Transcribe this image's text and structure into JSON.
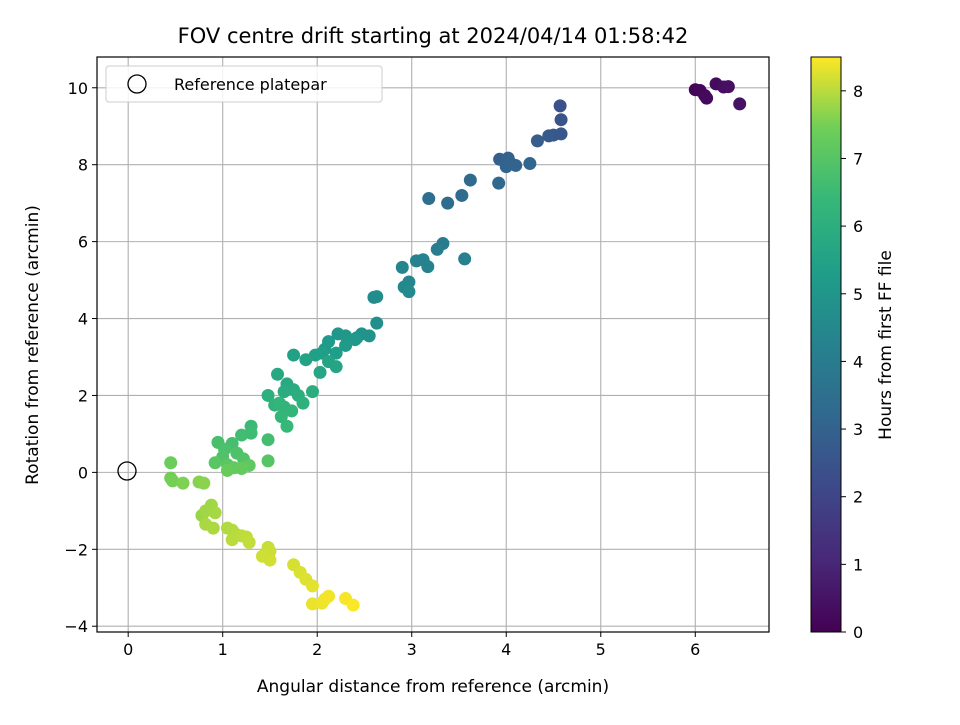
{
  "chart_data": {
    "type": "scatter",
    "title": "FOV centre drift starting at 2024/04/14 01:58:42",
    "xlabel": "Angular distance from reference (arcmin)",
    "ylabel": "Rotation from reference (arcmin)",
    "xlim": [
      -0.33,
      6.78
    ],
    "ylim": [
      -4.15,
      10.8
    ],
    "xticks": [
      "0",
      "1",
      "2",
      "3",
      "4",
      "5",
      "6"
    ],
    "yticks": [
      "−4",
      "−2",
      "0",
      "2",
      "4",
      "6",
      "8",
      "10"
    ],
    "grid": true,
    "legend": {
      "position": "top-left",
      "entries": [
        "Reference platepar"
      ]
    },
    "reference_point": {
      "x": 0,
      "y": 0
    },
    "colorbar": {
      "label": "Hours from first FF file",
      "colormap": "viridis",
      "range": [
        0,
        8.5
      ],
      "ticks": [
        "0",
        "1",
        "2",
        "3",
        "4",
        "5",
        "6",
        "7",
        "8"
      ]
    },
    "points": [
      {
        "x": 6.0,
        "y": 9.95,
        "h": 0.1
      },
      {
        "x": 6.05,
        "y": 9.93,
        "h": 0.15
      },
      {
        "x": 6.1,
        "y": 9.8,
        "h": 0.2
      },
      {
        "x": 6.12,
        "y": 9.73,
        "h": 0.25
      },
      {
        "x": 6.22,
        "y": 10.1,
        "h": 0.3
      },
      {
        "x": 6.3,
        "y": 10.02,
        "h": 0.35
      },
      {
        "x": 6.35,
        "y": 10.03,
        "h": 0.4
      },
      {
        "x": 6.47,
        "y": 9.58,
        "h": 0.45
      },
      {
        "x": 4.57,
        "y": 9.53,
        "h": 2.4
      },
      {
        "x": 4.58,
        "y": 9.17,
        "h": 2.5
      },
      {
        "x": 4.58,
        "y": 8.8,
        "h": 2.6
      },
      {
        "x": 4.5,
        "y": 8.77,
        "h": 2.65
      },
      {
        "x": 4.45,
        "y": 8.75,
        "h": 2.7
      },
      {
        "x": 4.33,
        "y": 8.62,
        "h": 2.8
      },
      {
        "x": 3.93,
        "y": 8.14,
        "h": 2.9
      },
      {
        "x": 4.02,
        "y": 8.17,
        "h": 2.95
      },
      {
        "x": 4.05,
        "y": 8.03,
        "h": 3.0
      },
      {
        "x": 4.1,
        "y": 7.98,
        "h": 3.05
      },
      {
        "x": 4.0,
        "y": 7.95,
        "h": 3.1
      },
      {
        "x": 4.25,
        "y": 8.03,
        "h": 3.15
      },
      {
        "x": 3.92,
        "y": 7.52,
        "h": 3.2
      },
      {
        "x": 3.62,
        "y": 7.6,
        "h": 3.3
      },
      {
        "x": 3.53,
        "y": 7.2,
        "h": 3.35
      },
      {
        "x": 3.38,
        "y": 7.0,
        "h": 3.4
      },
      {
        "x": 3.18,
        "y": 7.12,
        "h": 3.45
      },
      {
        "x": 3.33,
        "y": 5.95,
        "h": 4.0
      },
      {
        "x": 3.27,
        "y": 5.8,
        "h": 4.1
      },
      {
        "x": 3.56,
        "y": 5.55,
        "h": 4.15
      },
      {
        "x": 3.05,
        "y": 5.5,
        "h": 4.2
      },
      {
        "x": 3.12,
        "y": 5.53,
        "h": 4.25
      },
      {
        "x": 3.17,
        "y": 5.35,
        "h": 4.3
      },
      {
        "x": 2.9,
        "y": 5.33,
        "h": 4.35
      },
      {
        "x": 2.97,
        "y": 4.95,
        "h": 4.45
      },
      {
        "x": 2.92,
        "y": 4.82,
        "h": 4.5
      },
      {
        "x": 2.97,
        "y": 4.7,
        "h": 4.55
      },
      {
        "x": 2.6,
        "y": 4.55,
        "h": 4.6
      },
      {
        "x": 2.63,
        "y": 4.57,
        "h": 4.65
      },
      {
        "x": 2.63,
        "y": 3.88,
        "h": 4.75
      },
      {
        "x": 2.47,
        "y": 3.6,
        "h": 4.85
      },
      {
        "x": 2.55,
        "y": 3.55,
        "h": 4.9
      },
      {
        "x": 2.42,
        "y": 3.5,
        "h": 4.95
      },
      {
        "x": 2.22,
        "y": 3.6,
        "h": 5.0
      },
      {
        "x": 2.3,
        "y": 3.55,
        "h": 5.05
      },
      {
        "x": 2.4,
        "y": 3.45,
        "h": 5.1
      },
      {
        "x": 2.12,
        "y": 3.4,
        "h": 5.15
      },
      {
        "x": 2.3,
        "y": 3.3,
        "h": 5.2
      },
      {
        "x": 2.08,
        "y": 3.2,
        "h": 5.25
      },
      {
        "x": 2.2,
        "y": 3.1,
        "h": 5.3
      },
      {
        "x": 2.05,
        "y": 3.1,
        "h": 5.35
      },
      {
        "x": 1.98,
        "y": 3.05,
        "h": 5.4
      },
      {
        "x": 1.75,
        "y": 3.05,
        "h": 5.45
      },
      {
        "x": 1.88,
        "y": 2.93,
        "h": 5.5
      },
      {
        "x": 2.12,
        "y": 2.88,
        "h": 5.55
      },
      {
        "x": 2.2,
        "y": 2.75,
        "h": 5.6
      },
      {
        "x": 2.03,
        "y": 2.6,
        "h": 5.65
      },
      {
        "x": 1.58,
        "y": 2.55,
        "h": 5.75
      },
      {
        "x": 1.68,
        "y": 2.3,
        "h": 5.8
      },
      {
        "x": 1.75,
        "y": 2.15,
        "h": 5.85
      },
      {
        "x": 1.65,
        "y": 2.1,
        "h": 5.9
      },
      {
        "x": 1.95,
        "y": 2.1,
        "h": 5.95
      },
      {
        "x": 1.8,
        "y": 2.0,
        "h": 6.0
      },
      {
        "x": 1.48,
        "y": 2.0,
        "h": 6.05
      },
      {
        "x": 1.85,
        "y": 1.8,
        "h": 6.1
      },
      {
        "x": 1.55,
        "y": 1.75,
        "h": 6.15
      },
      {
        "x": 1.65,
        "y": 1.7,
        "h": 6.2
      },
      {
        "x": 1.6,
        "y": 1.8,
        "h": 6.25
      },
      {
        "x": 1.73,
        "y": 1.6,
        "h": 6.3
      },
      {
        "x": 1.62,
        "y": 1.45,
        "h": 6.35
      },
      {
        "x": 1.68,
        "y": 1.2,
        "h": 6.4
      },
      {
        "x": 1.3,
        "y": 1.2,
        "h": 6.5
      },
      {
        "x": 1.3,
        "y": 1.02,
        "h": 6.55
      },
      {
        "x": 1.2,
        "y": 0.97,
        "h": 6.6
      },
      {
        "x": 1.48,
        "y": 0.85,
        "h": 6.65
      },
      {
        "x": 1.1,
        "y": 0.75,
        "h": 6.7
      },
      {
        "x": 0.95,
        "y": 0.78,
        "h": 6.75
      },
      {
        "x": 1.02,
        "y": 0.6,
        "h": 6.8
      },
      {
        "x": 1.15,
        "y": 0.5,
        "h": 6.85
      },
      {
        "x": 1.0,
        "y": 0.4,
        "h": 6.9
      },
      {
        "x": 1.22,
        "y": 0.35,
        "h": 6.95
      },
      {
        "x": 1.48,
        "y": 0.3,
        "h": 7.0
      },
      {
        "x": 0.92,
        "y": 0.25,
        "h": 7.05
      },
      {
        "x": 1.05,
        "y": 0.2,
        "h": 7.1
      },
      {
        "x": 1.28,
        "y": 0.18,
        "h": 7.15
      },
      {
        "x": 1.12,
        "y": 0.12,
        "h": 7.2
      },
      {
        "x": 1.2,
        "y": 0.1,
        "h": 7.25
      },
      {
        "x": 1.05,
        "y": 0.05,
        "h": 7.3
      },
      {
        "x": 0.45,
        "y": 0.25,
        "h": 7.35
      },
      {
        "x": 0.45,
        "y": -0.15,
        "h": 7.45
      },
      {
        "x": 0.47,
        "y": -0.22,
        "h": 7.5
      },
      {
        "x": 0.58,
        "y": -0.28,
        "h": 7.55
      },
      {
        "x": 0.75,
        "y": -0.25,
        "h": 7.6
      },
      {
        "x": 0.8,
        "y": -0.28,
        "h": 7.65
      },
      {
        "x": 0.78,
        "y": -1.12,
        "h": 7.75
      },
      {
        "x": 0.88,
        "y": -0.85,
        "h": 7.8
      },
      {
        "x": 0.82,
        "y": -1.0,
        "h": 7.82
      },
      {
        "x": 0.92,
        "y": -1.05,
        "h": 7.85
      },
      {
        "x": 0.82,
        "y": -1.35,
        "h": 7.88
      },
      {
        "x": 0.9,
        "y": -1.45,
        "h": 7.9
      },
      {
        "x": 1.05,
        "y": -1.45,
        "h": 7.93
      },
      {
        "x": 1.1,
        "y": -1.5,
        "h": 7.95
      },
      {
        "x": 1.15,
        "y": -1.62,
        "h": 7.97
      },
      {
        "x": 1.1,
        "y": -1.75,
        "h": 8.0
      },
      {
        "x": 1.2,
        "y": -1.65,
        "h": 8.02
      },
      {
        "x": 1.25,
        "y": -1.68,
        "h": 8.05
      },
      {
        "x": 1.28,
        "y": -1.82,
        "h": 8.07
      },
      {
        "x": 1.48,
        "y": -1.95,
        "h": 8.1
      },
      {
        "x": 1.5,
        "y": -2.05,
        "h": 8.12
      },
      {
        "x": 1.42,
        "y": -2.18,
        "h": 8.15
      },
      {
        "x": 1.5,
        "y": -2.28,
        "h": 8.17
      },
      {
        "x": 1.75,
        "y": -2.4,
        "h": 8.2
      },
      {
        "x": 1.82,
        "y": -2.6,
        "h": 8.23
      },
      {
        "x": 1.88,
        "y": -2.78,
        "h": 8.26
      },
      {
        "x": 1.95,
        "y": -2.95,
        "h": 8.3
      },
      {
        "x": 1.95,
        "y": -3.42,
        "h": 8.35
      },
      {
        "x": 2.05,
        "y": -3.4,
        "h": 8.38
      },
      {
        "x": 2.08,
        "y": -3.3,
        "h": 8.4
      },
      {
        "x": 2.12,
        "y": -3.22,
        "h": 8.42
      },
      {
        "x": 2.3,
        "y": -3.28,
        "h": 8.45
      },
      {
        "x": 2.38,
        "y": -3.45,
        "h": 8.48
      }
    ]
  }
}
